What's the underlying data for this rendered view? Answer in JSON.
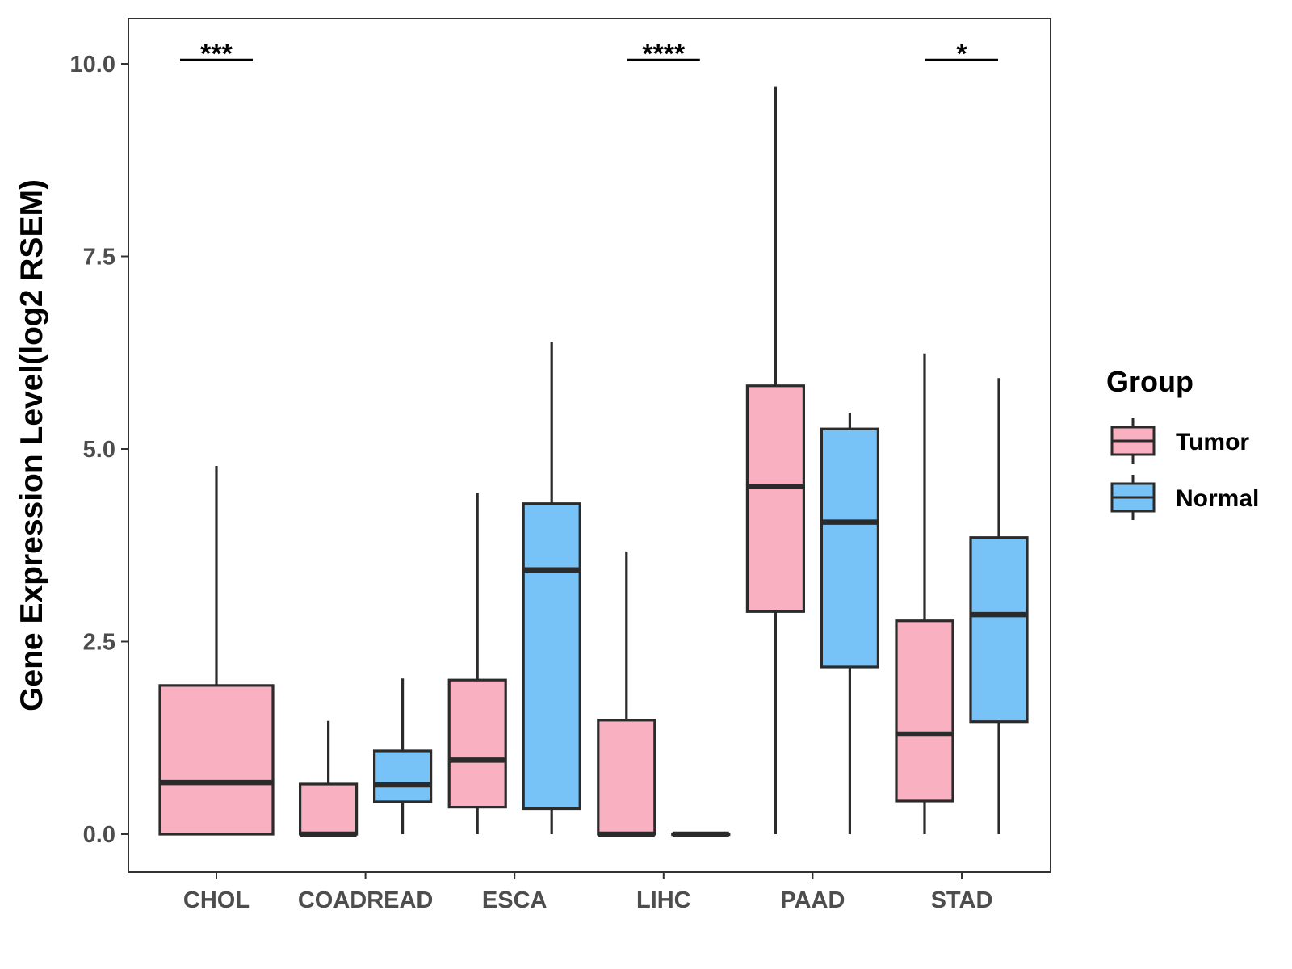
{
  "chart_data": {
    "type": "boxplot",
    "title": "",
    "xlabel": "",
    "ylabel": "Gene Expression Level(log2 RSEM)",
    "ylim": [
      -0.5,
      10.55
    ],
    "yticks": [
      0.0,
      2.5,
      5.0,
      7.5,
      10.0
    ],
    "ytick_labels": [
      "0.0",
      "2.5",
      "5.0",
      "7.5",
      "10.0"
    ],
    "categories": [
      "CHOL",
      "COADREAD",
      "ESCA",
      "LIHC",
      "PAAD",
      "STAD"
    ],
    "legend": {
      "title": "Group",
      "position": "right",
      "items": [
        {
          "name": "Tumor",
          "color": "#f9b0c1"
        },
        {
          "name": "Normal",
          "color": "#77c2f7"
        }
      ]
    },
    "series": [
      {
        "name": "Tumor",
        "color": "#f9b0c1",
        "boxes": [
          {
            "category": "CHOL",
            "min": 0.0,
            "q1": 0.0,
            "median": 0.67,
            "q3": 1.93,
            "max": 4.78
          },
          {
            "category": "COADREAD",
            "min": 0.0,
            "q1": 0.0,
            "median": 0.0,
            "q3": 0.65,
            "max": 1.47
          },
          {
            "category": "ESCA",
            "min": 0.0,
            "q1": 0.35,
            "median": 0.96,
            "q3": 2.0,
            "max": 4.43
          },
          {
            "category": "LIHC",
            "min": 0.0,
            "q1": 0.0,
            "median": 0.0,
            "q3": 1.48,
            "max": 3.67
          },
          {
            "category": "PAAD",
            "min": 0.0,
            "q1": 2.89,
            "median": 4.51,
            "q3": 5.82,
            "max": 9.7
          },
          {
            "category": "STAD",
            "min": 0.0,
            "q1": 0.43,
            "median": 1.3,
            "q3": 2.77,
            "max": 6.24
          }
        ]
      },
      {
        "name": "Normal",
        "color": "#77c2f7",
        "boxes": [
          {
            "category": "COADREAD",
            "min": 0.0,
            "q1": 0.42,
            "median": 0.64,
            "q3": 1.08,
            "max": 2.02
          },
          {
            "category": "ESCA",
            "min": 0.0,
            "q1": 0.33,
            "median": 3.43,
            "q3": 4.29,
            "max": 6.39
          },
          {
            "category": "LIHC",
            "min": 0.0,
            "q1": 0.0,
            "median": 0.0,
            "q3": 0.0,
            "max": 0.0
          },
          {
            "category": "PAAD",
            "min": 0.0,
            "q1": 2.17,
            "median": 4.05,
            "q3": 5.26,
            "max": 5.47
          },
          {
            "category": "STAD",
            "min": 0.0,
            "q1": 1.46,
            "median": 2.85,
            "q3": 3.85,
            "max": 5.92
          }
        ]
      }
    ],
    "significance": [
      {
        "category": "CHOL",
        "label": "***",
        "y": 10.05
      },
      {
        "category": "LIHC",
        "label": "****",
        "y": 10.05
      },
      {
        "category": "STAD",
        "label": "*",
        "y": 10.05
      }
    ]
  },
  "colors": {
    "outline": "#2b2b2b",
    "axis_text": "#4d4d4d",
    "panel_border": "#333333"
  }
}
